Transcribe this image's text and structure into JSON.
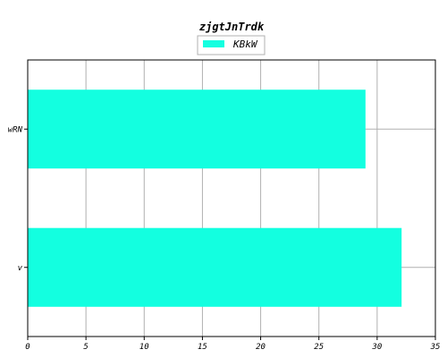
{
  "chart_data": {
    "type": "bar",
    "orientation": "horizontal",
    "title": "zjgtJnTrdk",
    "xlabel": "",
    "ylabel": "",
    "categories": [
      "v",
      "wRN"
    ],
    "series": [
      {
        "name": "KBkW",
        "values": [
          32.1,
          29.0
        ],
        "color": "#13ffe0"
      }
    ],
    "xlim": [
      0,
      35
    ],
    "xticks": [
      0,
      5,
      10,
      15,
      20,
      25,
      30,
      35
    ],
    "grid": true,
    "legend": "top-center"
  }
}
